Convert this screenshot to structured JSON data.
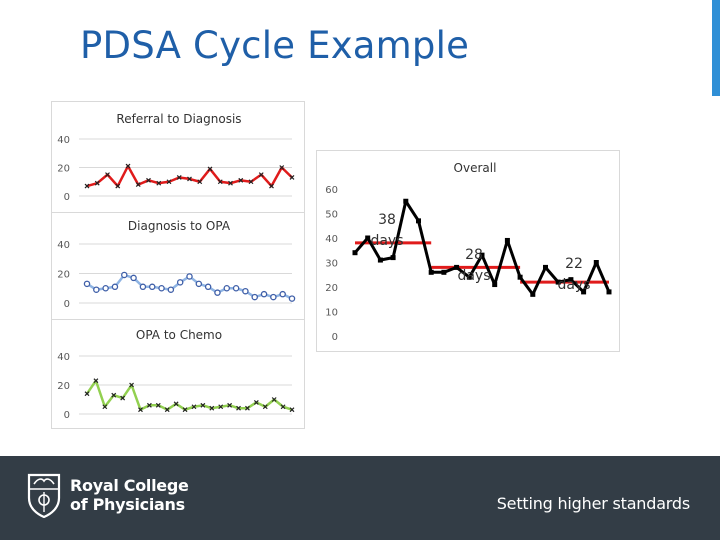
{
  "slide": {
    "title": "PDSA Cycle Example"
  },
  "footer": {
    "org_line1": "Royal College",
    "org_line2": "of Physicians",
    "tagline": "Setting higher standards"
  },
  "colors": {
    "title": "#1f5fa8",
    "footer_bg": "#333d46",
    "accent": "#2f8fd6",
    "referral_line": "#e01b1b",
    "opa_line": "#8fb4e3",
    "chemo_line": "#92d050",
    "overall_line": "#000000",
    "median_line": "#e01b1b"
  },
  "chart_data": [
    {
      "id": "referral",
      "type": "line",
      "title": "Referral to Diagnosis",
      "ylim": [
        0,
        40
      ],
      "yticks": [
        "40",
        "20",
        "0"
      ],
      "grid": true,
      "series": [
        {
          "values": [
            7,
            9,
            15,
            7,
            21,
            8,
            11,
            9,
            10,
            13,
            12,
            10,
            19,
            10,
            9,
            11,
            10,
            15,
            7,
            20,
            13
          ],
          "color": "#e01b1b",
          "marker": "x"
        }
      ]
    },
    {
      "id": "opa",
      "type": "line",
      "title": "Diagnosis to OPA",
      "ylim": [
        0,
        40
      ],
      "yticks": [
        "40",
        "20",
        "0"
      ],
      "grid": true,
      "series": [
        {
          "values": [
            13,
            9,
            10,
            11,
            19,
            17,
            11,
            11,
            10,
            9,
            14,
            18,
            13,
            11,
            7,
            10,
            10,
            8,
            4,
            6,
            4,
            6,
            3
          ],
          "color": "#8fb4e3",
          "marker": "circle"
        }
      ]
    },
    {
      "id": "chemo",
      "type": "line",
      "title": "OPA to Chemo",
      "ylim": [
        0,
        40
      ],
      "yticks": [
        "40",
        "20",
        "0"
      ],
      "grid": true,
      "series": [
        {
          "values": [
            14,
            23,
            5,
            13,
            11,
            20,
            3,
            6,
            6,
            3,
            7,
            3,
            5,
            6,
            4,
            5,
            6,
            4,
            4,
            8,
            5,
            10,
            5,
            3
          ],
          "color": "#92d050",
          "marker": "x"
        }
      ]
    },
    {
      "id": "overall",
      "type": "line",
      "title": "Overall",
      "ylim": [
        0,
        60
      ],
      "yticks": [
        "60",
        "50",
        "40",
        "30",
        "20",
        "10",
        "0"
      ],
      "grid": false,
      "series": [
        {
          "values": [
            34,
            40,
            31,
            32,
            55,
            47,
            26,
            26,
            28,
            24,
            33,
            21,
            39,
            24,
            17,
            28,
            22,
            23,
            18,
            30,
            18
          ],
          "color": "#000000",
          "marker": "square"
        }
      ],
      "medians": [
        {
          "from": 0,
          "to": 6,
          "value": 38,
          "label_value": "38",
          "label_unit": "days"
        },
        {
          "from": 6,
          "to": 13,
          "value": 28,
          "label_value": "28",
          "label_unit": "days"
        },
        {
          "from": 13,
          "to": 20,
          "value": 22,
          "label_value": "22",
          "label_unit": "days"
        }
      ]
    }
  ]
}
